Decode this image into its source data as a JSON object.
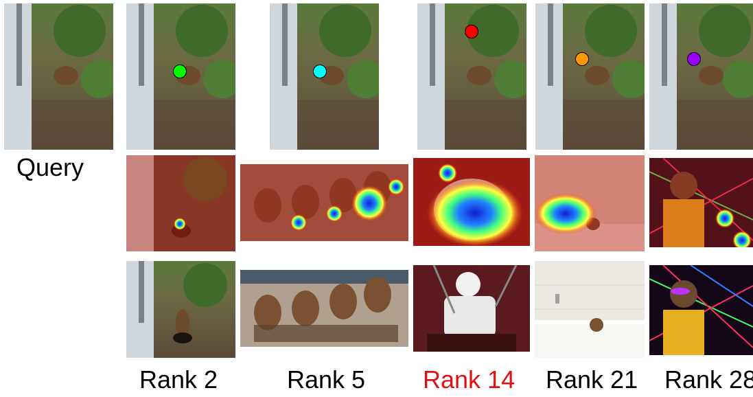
{
  "labels": {
    "query": "Query",
    "ranks": [
      "Rank 2",
      "Rank 5",
      "Rank 14",
      "Rank 21",
      "Rank 28"
    ]
  },
  "colors": {
    "highlight_rank": "#e01010",
    "default_label": "#000000",
    "markers": [
      "#00ff00",
      "#00ffff",
      "#ff0000",
      "#ff9900",
      "#9900ff"
    ]
  }
}
